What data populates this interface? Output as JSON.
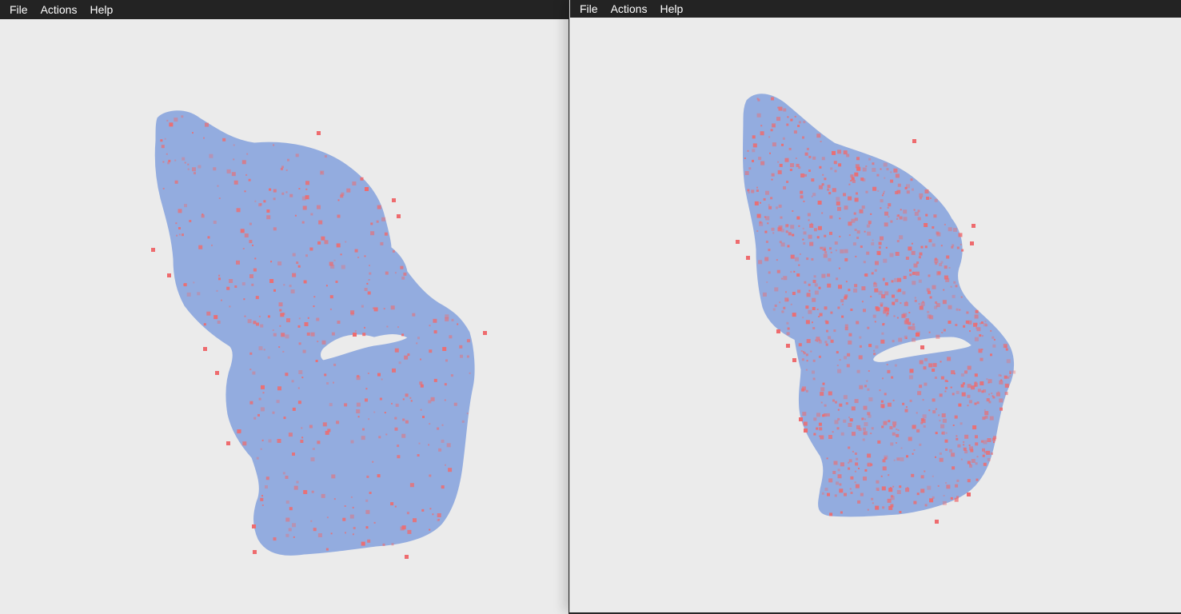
{
  "colors": {
    "menubar": "#232323",
    "menubar_text": "#ffffff",
    "canvas": "#ebebeb",
    "points_primary": "#93acdf",
    "points_highlight": "#ee6b6e"
  },
  "windows": [
    {
      "menu": [
        "File",
        "Actions",
        "Help"
      ],
      "highlight_density": "low"
    },
    {
      "menu": [
        "File",
        "Actions",
        "Help"
      ],
      "highlight_density": "high"
    }
  ]
}
